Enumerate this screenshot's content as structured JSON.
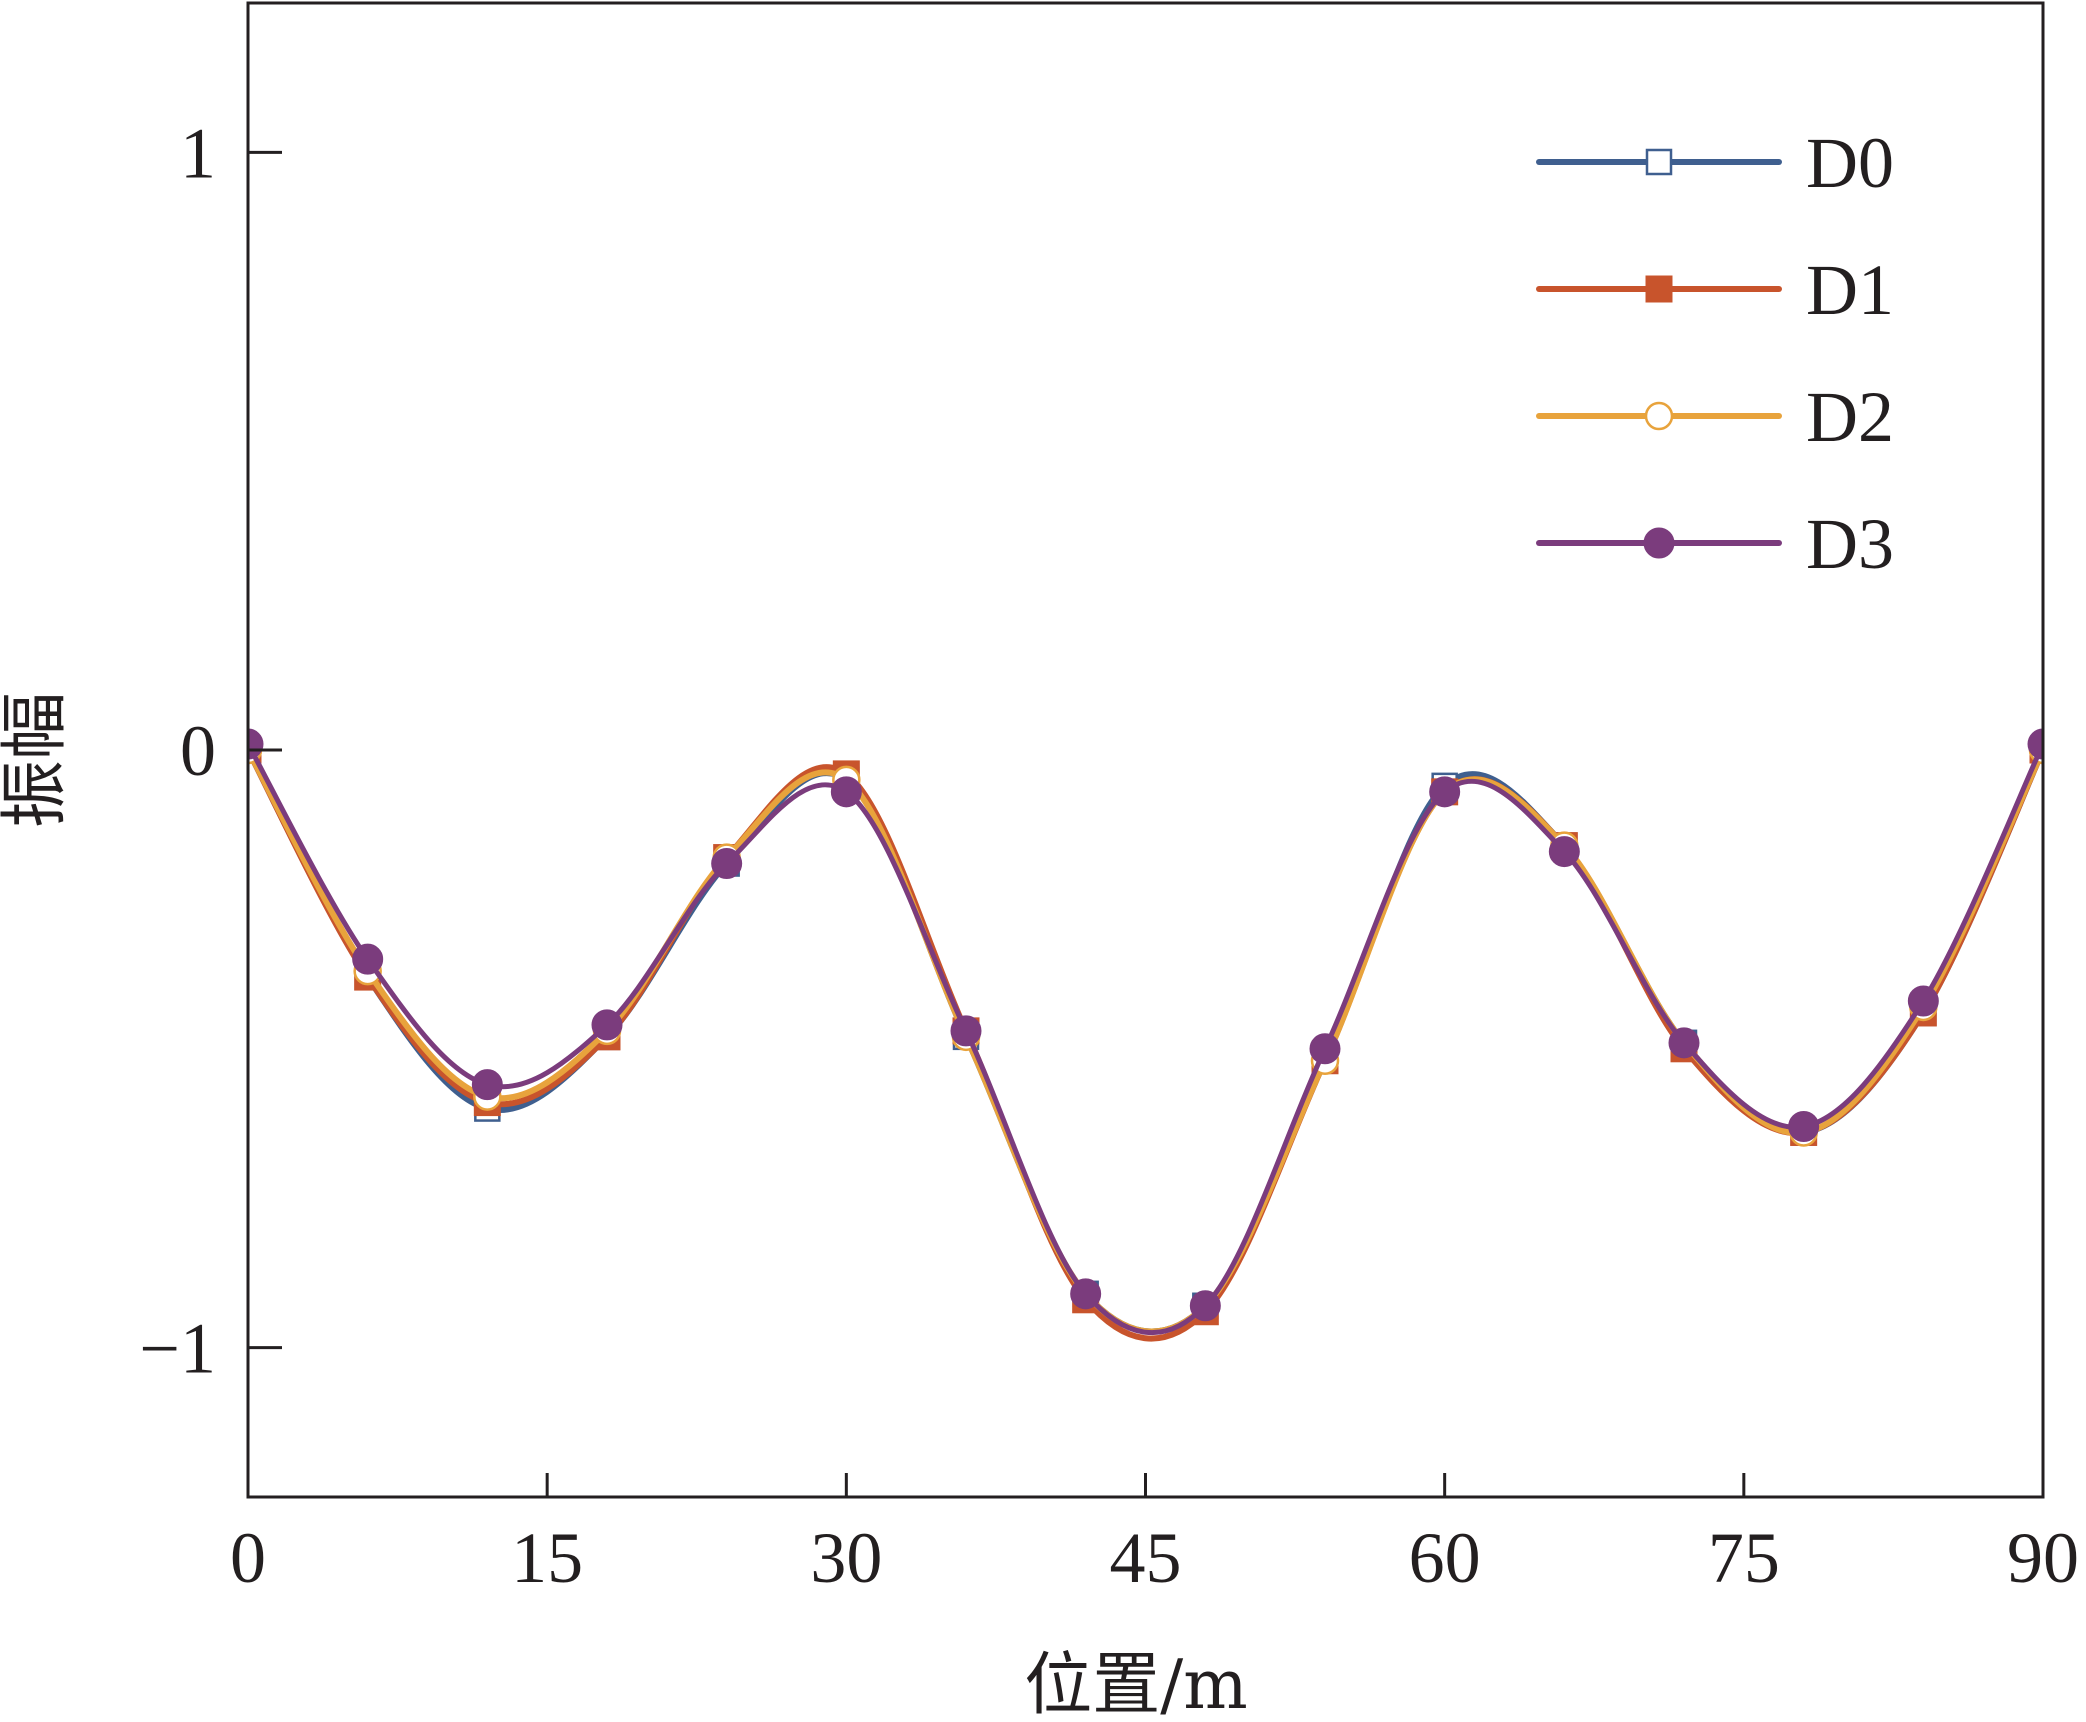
{
  "chart_data": {
    "type": "line",
    "title": "",
    "xlabel": "位置/m",
    "ylabel": "振幅",
    "xlim": [
      0,
      90
    ],
    "ylim": [
      -1.25,
      1.25
    ],
    "xticks": [
      0,
      15,
      30,
      45,
      60,
      75,
      90
    ],
    "xtick_labels": [
      "0",
      "15",
      "30",
      "45",
      "60",
      "75",
      "90"
    ],
    "yticks": [
      1,
      0,
      -1
    ],
    "ytick_labels": [
      "1",
      "0",
      "−1"
    ],
    "grid": false,
    "legend_position": "top-right",
    "x": [
      0,
      6,
      12,
      18,
      24,
      30,
      36,
      42,
      48,
      54,
      60,
      66,
      72,
      78,
      84,
      90
    ],
    "series": [
      {
        "name": "D0",
        "color": "#3f5f8f",
        "marker": "square-open",
        "values": [
          0.0,
          -0.38,
          -0.6,
          -0.48,
          -0.19,
          -0.05,
          -0.48,
          -0.91,
          -0.93,
          -0.52,
          -0.06,
          -0.16,
          -0.49,
          -0.64,
          -0.44,
          0.0
        ]
      },
      {
        "name": "D1",
        "color": "#c8542c",
        "marker": "square-filled",
        "values": [
          0.0,
          -0.38,
          -0.59,
          -0.48,
          -0.18,
          -0.04,
          -0.47,
          -0.92,
          -0.94,
          -0.52,
          -0.07,
          -0.16,
          -0.5,
          -0.64,
          -0.44,
          0.0
        ]
      },
      {
        "name": "D2",
        "color": "#e8a33c",
        "marker": "circle-open",
        "values": [
          0.0,
          -0.37,
          -0.58,
          -0.47,
          -0.18,
          -0.05,
          -0.48,
          -0.91,
          -0.93,
          -0.52,
          -0.07,
          -0.16,
          -0.49,
          -0.64,
          -0.43,
          0.0
        ]
      },
      {
        "name": "D3",
        "color": "#7b3c7d",
        "marker": "circle-filled",
        "values": [
          0.01,
          -0.35,
          -0.56,
          -0.46,
          -0.19,
          -0.07,
          -0.47,
          -0.91,
          -0.93,
          -0.5,
          -0.07,
          -0.17,
          -0.49,
          -0.63,
          -0.42,
          0.01
        ]
      }
    ]
  }
}
